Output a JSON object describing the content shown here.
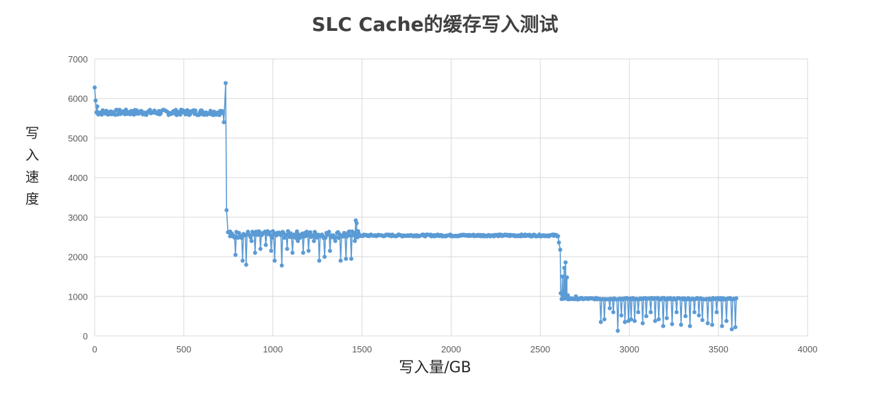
{
  "chart_data": {
    "type": "line",
    "title": "SLC Cache的缓存写入测试",
    "ylabel": [
      "写",
      "入",
      "速",
      "度"
    ],
    "xlabel": "写入量/GB",
    "xlim": [
      0,
      4000
    ],
    "ylim": [
      0,
      7000
    ],
    "x_ticks": [
      0,
      500,
      1000,
      1500,
      2000,
      2500,
      3000,
      3500,
      4000
    ],
    "y_ticks": [
      0,
      1000,
      2000,
      3000,
      4000,
      5000,
      6000,
      7000
    ],
    "grid": true,
    "marker": "circle",
    "color": "#5b9bd5",
    "segments": [
      {
        "x_start": 10,
        "x_end": 720,
        "level": 5650,
        "jitter": 70,
        "dips": []
      },
      {
        "x_start": 760,
        "x_end": 1480,
        "level": 2560,
        "jitter": 90,
        "dips": [
          [
            790,
            2050
          ],
          [
            810,
            2600
          ],
          [
            830,
            1900
          ],
          [
            850,
            1800
          ],
          [
            880,
            2400
          ],
          [
            900,
            2100
          ],
          [
            930,
            2200
          ],
          [
            960,
            2300
          ],
          [
            990,
            2150
          ],
          [
            1010,
            1900
          ],
          [
            1030,
            2600
          ],
          [
            1050,
            1780
          ],
          [
            1080,
            2200
          ],
          [
            1110,
            2100
          ],
          [
            1140,
            2400
          ],
          [
            1170,
            2100
          ],
          [
            1200,
            2150
          ],
          [
            1230,
            2400
          ],
          [
            1260,
            1900
          ],
          [
            1290,
            2000
          ],
          [
            1320,
            2150
          ],
          [
            1350,
            2400
          ],
          [
            1380,
            1900
          ],
          [
            1410,
            1950
          ],
          [
            1440,
            1950
          ],
          [
            1460,
            2400
          ]
        ]
      },
      {
        "x_start": 1480,
        "x_end": 2600,
        "level": 2540,
        "jitter": 25,
        "dips": []
      },
      {
        "x_start": 2620,
        "x_end": 3600,
        "level": 940,
        "jitter": 20,
        "dips": [
          [
            2840,
            350
          ],
          [
            2860,
            420
          ],
          [
            2890,
            700
          ],
          [
            2910,
            600
          ],
          [
            2935,
            130
          ],
          [
            2955,
            520
          ],
          [
            2975,
            350
          ],
          [
            2995,
            380
          ],
          [
            3010,
            420
          ],
          [
            3030,
            380
          ],
          [
            3050,
            600
          ],
          [
            3075,
            320
          ],
          [
            3095,
            500
          ],
          [
            3120,
            600
          ],
          [
            3145,
            380
          ],
          [
            3165,
            420
          ],
          [
            3190,
            250
          ],
          [
            3210,
            450
          ],
          [
            3240,
            300
          ],
          [
            3265,
            600
          ],
          [
            3290,
            280
          ],
          [
            3315,
            500
          ],
          [
            3340,
            250
          ],
          [
            3365,
            600
          ],
          [
            3390,
            520
          ],
          [
            3410,
            400
          ],
          [
            3440,
            320
          ],
          [
            3465,
            280
          ],
          [
            3490,
            600
          ],
          [
            3520,
            250
          ],
          [
            3545,
            380
          ],
          [
            3575,
            170
          ],
          [
            3595,
            220
          ]
        ]
      }
    ],
    "transitions": [
      {
        "x": 0,
        "y": 6280
      },
      {
        "x": 5,
        "y": 5950
      },
      {
        "x": 15,
        "y": 5800
      },
      {
        "x": 725,
        "y": 5400
      },
      {
        "x": 735,
        "y": 6390
      },
      {
        "x": 740,
        "y": 3180
      },
      {
        "x": 748,
        "y": 2620
      },
      {
        "x": 760,
        "y": 2520
      },
      {
        "x": 1465,
        "y": 2920
      },
      {
        "x": 1470,
        "y": 2850
      },
      {
        "x": 1478,
        "y": 2650
      },
      {
        "x": 2605,
        "y": 2360
      },
      {
        "x": 2612,
        "y": 2180
      },
      {
        "x": 2615,
        "y": 1080
      },
      {
        "x": 2625,
        "y": 1500
      },
      {
        "x": 2635,
        "y": 1720
      },
      {
        "x": 2642,
        "y": 1860
      },
      {
        "x": 2650,
        "y": 1480
      },
      {
        "x": 2655,
        "y": 1030
      },
      {
        "x": 2700,
        "y": 1000
      },
      {
        "x": 2780,
        "y": 950
      }
    ]
  }
}
